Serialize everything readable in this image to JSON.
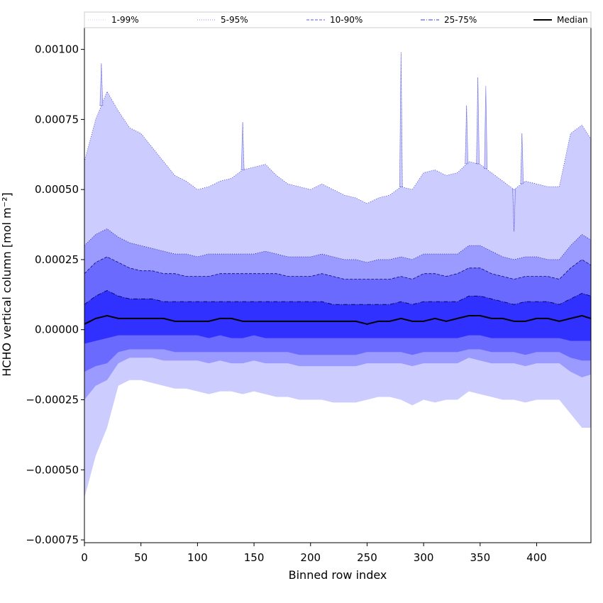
{
  "chart_data": {
    "type": "area",
    "xlabel": "Binned row index",
    "ylabel": "HCHO vertical column [mol m⁻²]",
    "xlim": [
      0,
      448
    ],
    "ylim": [
      -0.00076,
      0.00108
    ],
    "x_ticks": [
      0,
      50,
      100,
      150,
      200,
      250,
      300,
      350,
      400
    ],
    "x_tick_labels": [
      "0",
      "50",
      "100",
      "150",
      "200",
      "250",
      "300",
      "350",
      "400"
    ],
    "y_ticks": [
      -0.00075,
      -0.0005,
      -0.00025,
      0.0,
      0.00025,
      0.0005,
      0.00075,
      0.001
    ],
    "y_tick_labels": [
      "−0.00075",
      "−0.00050",
      "−0.00025",
      "0.00000",
      "0.00025",
      "0.00050",
      "0.00075",
      "0.00100"
    ],
    "grid": false,
    "legend_position": "top",
    "legend": [
      {
        "label": "1-99%",
        "color": "#ccccff",
        "style": "dotted"
      },
      {
        "label": "5-95%",
        "color": "#8080ff",
        "style": "dotted"
      },
      {
        "label": "10-90%",
        "color": "#5a5aff",
        "style": "dashed"
      },
      {
        "label": "25-75%",
        "color": "#3a3aee",
        "style": "dashdot"
      },
      {
        "label": "Median",
        "color": "#000000",
        "style": "solid"
      }
    ],
    "x": [
      0,
      10,
      20,
      30,
      40,
      50,
      60,
      70,
      80,
      90,
      100,
      110,
      120,
      130,
      140,
      150,
      160,
      170,
      180,
      190,
      200,
      210,
      220,
      230,
      240,
      250,
      260,
      270,
      280,
      290,
      300,
      310,
      320,
      330,
      340,
      350,
      360,
      370,
      380,
      390,
      400,
      410,
      420,
      430,
      440,
      448
    ],
    "bands": [
      {
        "name": "1-99%",
        "color": "#ccccff",
        "upper": [
          0.0006,
          0.00075,
          0.00085,
          0.00078,
          0.00072,
          0.0007,
          0.00065,
          0.0006,
          0.00055,
          0.00053,
          0.0005,
          0.00051,
          0.00053,
          0.00054,
          0.00057,
          0.00058,
          0.00059,
          0.00055,
          0.00052,
          0.00051,
          0.0005,
          0.00052,
          0.0005,
          0.00048,
          0.00047,
          0.00045,
          0.00047,
          0.00048,
          0.00051,
          0.0005,
          0.00056,
          0.00057,
          0.00055,
          0.00056,
          0.0006,
          0.00059,
          0.00056,
          0.00053,
          0.0005,
          0.00053,
          0.00052,
          0.00051,
          0.00051,
          0.0007,
          0.00073,
          0.00068
        ],
        "lower": [
          -0.0006,
          -0.00045,
          -0.00035,
          -0.0002,
          -0.00018,
          -0.00018,
          -0.00019,
          -0.0002,
          -0.00021,
          -0.00021,
          -0.00022,
          -0.00023,
          -0.00022,
          -0.00022,
          -0.00023,
          -0.00022,
          -0.00023,
          -0.00024,
          -0.00024,
          -0.00025,
          -0.00025,
          -0.00025,
          -0.00026,
          -0.00026,
          -0.00026,
          -0.00025,
          -0.00024,
          -0.00024,
          -0.00025,
          -0.00027,
          -0.00025,
          -0.00026,
          -0.00025,
          -0.00025,
          -0.00022,
          -0.00023,
          -0.00024,
          -0.00025,
          -0.00025,
          -0.00026,
          -0.00025,
          -0.00025,
          -0.00025,
          -0.0003,
          -0.00035,
          -0.00035
        ]
      },
      {
        "name": "5-95%",
        "color": "#9a9aff",
        "upper": [
          0.0003,
          0.00034,
          0.00036,
          0.00033,
          0.00031,
          0.0003,
          0.00029,
          0.00028,
          0.00027,
          0.00027,
          0.00026,
          0.00027,
          0.00027,
          0.00027,
          0.00027,
          0.00027,
          0.00028,
          0.00027,
          0.00026,
          0.00026,
          0.00026,
          0.00027,
          0.00026,
          0.00025,
          0.00025,
          0.00024,
          0.00025,
          0.00025,
          0.00026,
          0.00025,
          0.00027,
          0.00027,
          0.00027,
          0.00027,
          0.0003,
          0.0003,
          0.00028,
          0.00026,
          0.00025,
          0.00026,
          0.00026,
          0.00025,
          0.00025,
          0.0003,
          0.00034,
          0.00032
        ],
        "lower": [
          -0.00025,
          -0.0002,
          -0.00018,
          -0.00012,
          -0.0001,
          -0.0001,
          -0.0001,
          -0.00011,
          -0.00011,
          -0.00011,
          -0.00011,
          -0.00012,
          -0.00011,
          -0.00012,
          -0.00012,
          -0.00011,
          -0.00012,
          -0.00012,
          -0.00012,
          -0.00013,
          -0.00013,
          -0.00013,
          -0.00013,
          -0.00013,
          -0.00013,
          -0.00012,
          -0.00012,
          -0.00012,
          -0.00012,
          -0.00013,
          -0.00012,
          -0.00012,
          -0.00012,
          -0.00012,
          -0.0001,
          -0.00011,
          -0.00012,
          -0.00012,
          -0.00012,
          -0.00013,
          -0.00012,
          -0.00012,
          -0.00012,
          -0.00015,
          -0.00017,
          -0.00016
        ]
      },
      {
        "name": "10-90%",
        "color": "#6a6aff",
        "upper": [
          0.0002,
          0.00024,
          0.00026,
          0.00024,
          0.00022,
          0.00021,
          0.00021,
          0.0002,
          0.0002,
          0.00019,
          0.00019,
          0.00019,
          0.0002,
          0.0002,
          0.0002,
          0.0002,
          0.0002,
          0.0002,
          0.00019,
          0.00019,
          0.00019,
          0.0002,
          0.00019,
          0.00018,
          0.00018,
          0.00018,
          0.00018,
          0.00018,
          0.00019,
          0.00018,
          0.0002,
          0.0002,
          0.00019,
          0.0002,
          0.00022,
          0.00022,
          0.0002,
          0.00019,
          0.00018,
          0.00019,
          0.00019,
          0.00019,
          0.00018,
          0.00022,
          0.00025,
          0.00023
        ],
        "lower": [
          -0.00015,
          -0.00013,
          -0.00012,
          -8e-05,
          -7e-05,
          -7e-05,
          -7e-05,
          -7e-05,
          -8e-05,
          -8e-05,
          -8e-05,
          -8e-05,
          -8e-05,
          -8e-05,
          -8e-05,
          -8e-05,
          -8e-05,
          -8e-05,
          -8e-05,
          -9e-05,
          -9e-05,
          -9e-05,
          -9e-05,
          -9e-05,
          -9e-05,
          -8e-05,
          -8e-05,
          -8e-05,
          -8e-05,
          -9e-05,
          -8e-05,
          -8e-05,
          -8e-05,
          -8e-05,
          -7e-05,
          -7e-05,
          -8e-05,
          -8e-05,
          -8e-05,
          -9e-05,
          -8e-05,
          -8e-05,
          -8e-05,
          -0.0001,
          -0.00011,
          -0.00011
        ]
      },
      {
        "name": "25-75%",
        "color": "#3030ff",
        "upper": [
          9e-05,
          0.00012,
          0.00014,
          0.00012,
          0.00011,
          0.00011,
          0.00011,
          0.0001,
          0.0001,
          0.0001,
          0.0001,
          0.0001,
          0.0001,
          0.0001,
          0.0001,
          0.0001,
          0.0001,
          0.0001,
          0.0001,
          0.0001,
          0.0001,
          0.0001,
          9e-05,
          9e-05,
          9e-05,
          9e-05,
          9e-05,
          9e-05,
          0.0001,
          9e-05,
          0.0001,
          0.0001,
          0.0001,
          0.0001,
          0.00012,
          0.00012,
          0.00011,
          0.0001,
          9e-05,
          0.0001,
          0.0001,
          0.0001,
          9e-05,
          0.00011,
          0.00013,
          0.00012
        ],
        "lower": [
          -5e-05,
          -4e-05,
          -3e-05,
          -2e-05,
          -2e-05,
          -2e-05,
          -2e-05,
          -2e-05,
          -2e-05,
          -2e-05,
          -2e-05,
          -3e-05,
          -2e-05,
          -3e-05,
          -3e-05,
          -2e-05,
          -3e-05,
          -3e-05,
          -3e-05,
          -3e-05,
          -3e-05,
          -3e-05,
          -3e-05,
          -3e-05,
          -3e-05,
          -3e-05,
          -3e-05,
          -3e-05,
          -3e-05,
          -3e-05,
          -3e-05,
          -3e-05,
          -3e-05,
          -3e-05,
          -2e-05,
          -2e-05,
          -3e-05,
          -3e-05,
          -3e-05,
          -3e-05,
          -3e-05,
          -3e-05,
          -3e-05,
          -4e-05,
          -4e-05,
          -4e-05
        ]
      }
    ],
    "series": [
      {
        "name": "Median",
        "color": "#000000",
        "values": [
          2e-05,
          4e-05,
          5e-05,
          4e-05,
          4e-05,
          4e-05,
          4e-05,
          4e-05,
          3e-05,
          3e-05,
          3e-05,
          3e-05,
          4e-05,
          4e-05,
          3e-05,
          3e-05,
          3e-05,
          3e-05,
          3e-05,
          3e-05,
          3e-05,
          3e-05,
          3e-05,
          3e-05,
          3e-05,
          2e-05,
          3e-05,
          3e-05,
          4e-05,
          3e-05,
          3e-05,
          4e-05,
          3e-05,
          4e-05,
          5e-05,
          5e-05,
          4e-05,
          4e-05,
          3e-05,
          3e-05,
          4e-05,
          4e-05,
          3e-05,
          4e-05,
          5e-05,
          4e-05
        ]
      }
    ],
    "spikes": [
      {
        "x": 15,
        "upper": 0.00095
      },
      {
        "x": 140,
        "upper": 0.00074
      },
      {
        "x": 280,
        "upper": 0.00099
      },
      {
        "x": 338,
        "upper": 0.0008
      },
      {
        "x": 348,
        "upper": 0.0009
      },
      {
        "x": 355,
        "upper": 0.00087
      },
      {
        "x": 380,
        "upper": 0.00035
      },
      {
        "x": 387,
        "upper": 0.0007
      }
    ]
  }
}
